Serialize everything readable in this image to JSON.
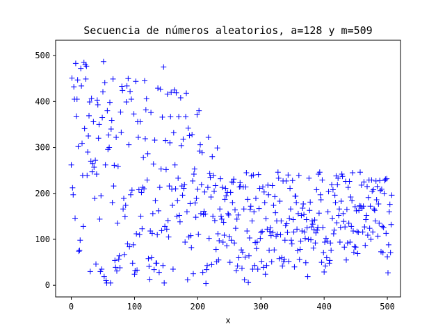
{
  "chart_data": {
    "type": "scatter",
    "title": "Secuencia de números aleatorios, a=128 y m=509",
    "xlabel": "x",
    "ylabel": "",
    "xlim": [
      -24.8,
      520.8
    ],
    "ylim": [
      -25.4,
      533.4
    ],
    "xticks": [
      0,
      100,
      200,
      300,
      400,
      500
    ],
    "yticks": [
      0,
      100,
      200,
      300,
      400,
      500
    ],
    "grid": false,
    "marker": "+",
    "color": "#0000ff",
    "series": [
      {
        "name": "",
        "x": [
          0,
          1,
          2,
          3,
          4,
          5,
          6,
          7,
          8,
          9,
          10,
          11,
          12,
          13,
          14,
          15,
          16,
          17,
          18,
          19,
          20,
          21,
          22,
          23,
          24,
          25,
          26,
          27,
          28,
          29,
          30,
          31,
          32,
          33,
          34,
          35,
          36,
          37,
          38,
          39,
          40,
          41,
          42,
          43,
          44,
          45,
          46,
          47,
          48,
          49,
          50,
          51,
          52,
          53,
          54,
          55,
          56,
          57,
          58,
          59,
          60,
          61,
          62,
          63,
          64,
          65,
          66,
          67,
          68,
          69,
          70,
          71,
          72,
          73,
          74,
          75,
          76,
          77,
          78,
          79,
          80,
          81,
          82,
          83,
          84,
          85,
          86,
          87,
          88,
          89,
          90,
          91,
          92,
          93,
          94,
          95,
          96,
          97,
          98,
          99,
          100,
          101,
          102,
          103,
          104,
          105,
          106,
          107,
          108,
          109,
          110,
          111,
          112,
          113,
          114,
          115,
          116,
          117,
          118,
          119,
          120,
          121,
          122,
          123,
          124,
          125,
          126,
          127,
          128,
          129,
          130,
          131,
          132,
          133,
          134,
          135,
          136,
          137,
          138,
          139,
          140,
          141,
          142,
          143,
          144,
          145,
          146,
          147,
          148,
          149,
          150,
          151,
          152,
          153,
          154,
          155,
          156,
          157,
          158,
          159,
          160,
          161,
          162,
          163,
          164,
          165,
          166,
          167,
          168,
          169,
          170,
          171,
          172,
          173,
          174,
          175,
          176,
          177,
          178,
          179,
          180,
          181,
          182,
          183,
          184,
          185,
          186,
          187,
          188,
          189,
          190,
          191,
          192,
          193,
          194,
          195,
          196,
          197,
          198,
          199,
          200,
          201,
          202,
          203,
          204,
          205,
          206,
          207,
          208,
          209,
          210,
          211,
          212,
          213,
          214,
          215,
          216,
          217,
          218,
          219,
          220,
          221,
          222,
          223,
          224,
          225,
          226,
          227,
          228,
          229,
          230,
          231,
          232,
          233,
          234,
          235,
          236,
          237,
          238,
          239,
          240,
          241,
          242,
          243,
          244,
          245,
          246,
          247,
          248,
          249,
          250,
          251,
          252,
          253,
          254,
          255,
          256,
          257,
          258,
          259,
          260,
          261,
          262,
          263,
          264,
          265,
          266,
          267,
          268,
          269,
          270,
          271,
          272,
          273,
          274,
          275,
          276,
          277,
          278,
          279,
          280,
          281,
          282,
          283,
          284,
          285,
          286,
          287,
          288,
          289,
          290,
          291,
          292,
          293,
          294,
          295,
          296,
          297,
          298,
          299,
          300,
          301,
          302,
          303,
          304,
          305,
          306,
          307,
          308,
          309,
          310,
          311,
          312,
          313,
          314,
          315,
          316,
          317,
          318,
          319,
          320,
          321,
          322,
          323,
          324,
          325,
          326,
          327,
          328,
          329,
          330,
          331,
          332,
          333,
          334,
          335,
          336,
          337,
          338,
          339,
          340,
          341,
          342,
          343,
          344,
          345,
          346,
          347,
          348,
          349,
          350,
          351,
          352,
          353,
          354,
          355,
          356,
          357,
          358,
          359,
          360,
          361,
          362,
          363,
          364,
          365,
          366,
          367,
          368,
          369,
          370,
          371,
          372,
          373,
          374,
          375,
          376,
          377,
          378,
          379,
          380,
          381,
          382,
          383,
          384,
          385,
          386,
          387,
          388,
          389,
          390,
          391,
          392,
          393,
          394,
          395,
          396,
          397,
          398,
          399,
          400,
          401,
          402,
          403,
          404,
          405,
          406,
          407,
          408,
          409,
          410,
          411,
          412,
          413,
          414,
          415,
          416,
          417,
          418,
          419,
          420,
          421,
          422,
          423,
          424,
          425,
          426,
          427,
          428,
          429,
          430,
          431,
          432,
          433,
          434,
          435,
          436,
          437,
          438,
          439,
          440,
          441,
          442,
          443,
          444,
          445,
          446,
          447,
          448,
          449,
          450,
          451,
          452,
          453,
          454,
          455,
          456,
          457,
          458,
          459,
          460,
          461,
          462,
          463,
          464,
          465,
          466,
          467,
          468,
          469,
          470,
          471,
          472,
          473,
          474,
          475,
          476,
          477,
          478,
          479,
          480,
          481,
          482,
          483,
          484,
          485,
          486,
          487,
          488,
          489,
          490,
          491,
          492,
          493,
          494,
          495,
          496,
          497,
          498,
          499,
          500,
          501,
          502,
          503,
          504,
          505,
          506,
          507
        ],
        "y": [
          262,
          451,
          212,
          197,
          432,
          405,
          146,
          483,
          368,
          405,
          447,
          302,
          74,
          76,
          98,
          472,
          434,
          309,
          239,
          128,
          485,
          341,
          480,
          449,
          477,
          239,
          290,
          325,
          369,
          399,
          30,
          270,
          407,
          247,
          265,
          356,
          257,
          189,
          272,
          46,
          242,
          403,
          393,
          320,
          350,
          144,
          30,
          195,
          35,
          365,
          421,
          487,
          19,
          441,
          262,
          10,
          5,
          380,
          296,
          327,
          300,
          398,
          5,
          340,
          359,
          180,
          449,
          216,
          261,
          54,
          39,
          322,
          31,
          135,
          259,
          57,
          64,
          38,
          377,
          333,
          433,
          424,
          166,
          189,
          67,
          149,
          174,
          399,
          434,
          90,
          450,
          306,
          84,
          422,
          197,
          405,
          207,
          48,
          88,
          373,
          24,
          32,
          444,
          112,
          33,
          356,
          322,
          208,
          110,
          356,
          150,
          202,
          123,
          213,
          278,
          210,
          445,
          319,
          382,
          406,
          229,
          286,
          58,
          41,
          13,
          118,
          376,
          60,
          113,
          156,
          264,
          34,
          316,
          184,
          48,
          48,
          110,
          429,
          162,
          28,
          213,
          427,
          253,
          119,
          366,
          43,
          475,
          5,
          128,
          315,
          252,
          122,
          416,
          141,
          105,
          216,
          310,
          367,
          420,
          209,
          174,
          35,
          332,
          425,
          262,
          210,
          419,
          150,
          184,
          233,
          367,
          152,
          138,
          408,
          304,
          216,
          196,
          318,
          211,
          219,
          94,
          367,
          418,
          160,
          12,
          342,
          105,
          326,
          178,
          108,
          82,
          328,
          227,
          25,
          242,
          253,
          179,
          148,
          189,
          371,
          209,
          111,
          380,
          292,
          306,
          156,
          219,
          289,
          28,
          154,
          161,
          203,
          155,
          4,
          34,
          43,
          213,
          322,
          102,
          243,
          235,
          192,
          45,
          280,
          150,
          239,
          205,
          141,
          217,
          78,
          51,
          299,
          112,
          55,
          97,
          166,
          232,
          150,
          144,
          213,
          94,
          137,
          109,
          187,
          211,
          195,
          86,
          202,
          156,
          153,
          106,
          50,
          202,
          98,
          225,
          180,
          224,
          231,
          92,
          164,
          124,
          32,
          144,
          42,
          153,
          60,
          214,
          223,
          215,
          77,
          37,
          72,
          214,
          166,
          12,
          61,
          214,
          245,
          118,
          187,
          6,
          64,
          103,
          165,
          172,
          238,
          140,
          35,
          240,
          160,
          43,
          93,
          189,
          80,
          94,
          35,
          241,
          167,
          211,
          102,
          115,
          52,
          117,
          214,
          39,
          203,
          180,
          24,
          145,
          43,
          122,
          218,
          197,
          76,
          117,
          125,
          108,
          51,
          217,
          115,
          174,
          77,
          193,
          158,
          107,
          140,
          111,
          246,
          233,
          58,
          183,
          110,
          140,
          60,
          42,
          227,
          51,
          57,
          98,
          130,
          227,
          134,
          115,
          240,
          52,
          146,
          211,
          166,
          98,
          90,
          228,
          143,
          116,
          40,
          194,
          194,
          180,
          122,
          75,
          156,
          239,
          56,
          78,
          96,
          152,
          118,
          168,
          177,
          154,
          116,
          102,
          49,
          143,
          125,
          19,
          100,
          233,
          163,
          181,
          99,
          127,
          140,
          133,
          81,
          121,
          142,
          92,
          114,
          208,
          120,
          126,
          242,
          157,
          246,
          197,
          186,
          50,
          229,
          126,
          71,
          29,
          94,
          42,
          102,
          60,
          96,
          160,
          204,
          48,
          54,
          92,
          76,
          219,
          146,
          208,
          112,
          120,
          196,
          180,
          238,
          136,
          219,
          233,
          152,
          166,
          94,
          126,
          183,
          242,
          237,
          156,
          139,
          83,
          127,
          226,
          55,
          165,
          92,
          213,
          135,
          226,
          94,
          192,
          128,
          184,
          245,
          118,
          72,
          84,
          171,
          83,
          162,
          117,
          69,
          115,
          163,
          173,
          246,
          172,
          218,
          168,
          116,
          172,
          225,
          127,
          87,
          143,
          152,
          215,
          109,
          191,
          229,
          124,
          172,
          100,
          229,
          205,
          116,
          208,
          166,
          163,
          140,
          227,
          186,
          215,
          107,
          177,
          135,
          228,
          206,
          73,
          209,
          128,
          71,
          126,
          200,
          228,
          231,
          113,
          232,
          62,
          27,
          88,
          160,
          176,
          71,
          132,
          196
        ]
      }
    ]
  }
}
